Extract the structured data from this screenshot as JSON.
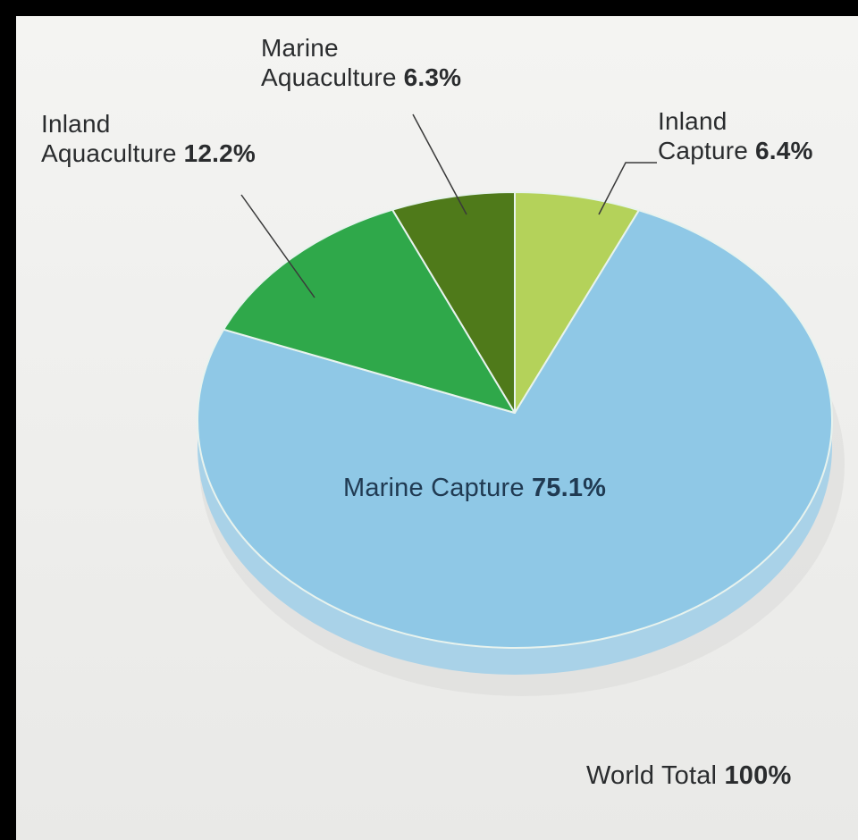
{
  "chart_data": {
    "type": "pie",
    "slices": [
      {
        "name_lines": [
          "Marine Capture"
        ],
        "value": 75.1,
        "label": "75.1%",
        "color": "#8fc8e6"
      },
      {
        "name_lines": [
          "Inland",
          "Aquaculture"
        ],
        "value": 12.2,
        "label": "12.2%",
        "color": "#2fa84a"
      },
      {
        "name_lines": [
          "Marine",
          "Aquaculture"
        ],
        "value": 6.3,
        "label": "6.3%",
        "color": "#4f7a1a"
      },
      {
        "name_lines": [
          "Inland",
          "Capture"
        ],
        "value": 6.4,
        "label": "6.4%",
        "color": "#b4d25a"
      }
    ],
    "total": {
      "name": "World Total",
      "label": "100%"
    },
    "start_angle_deg": 0,
    "direction": "counterclockwise"
  },
  "colors": {
    "background": "#000000",
    "paper": "#f0f0ee",
    "pie_side": "#a9d2e8",
    "leader": "#3a3a3a"
  }
}
